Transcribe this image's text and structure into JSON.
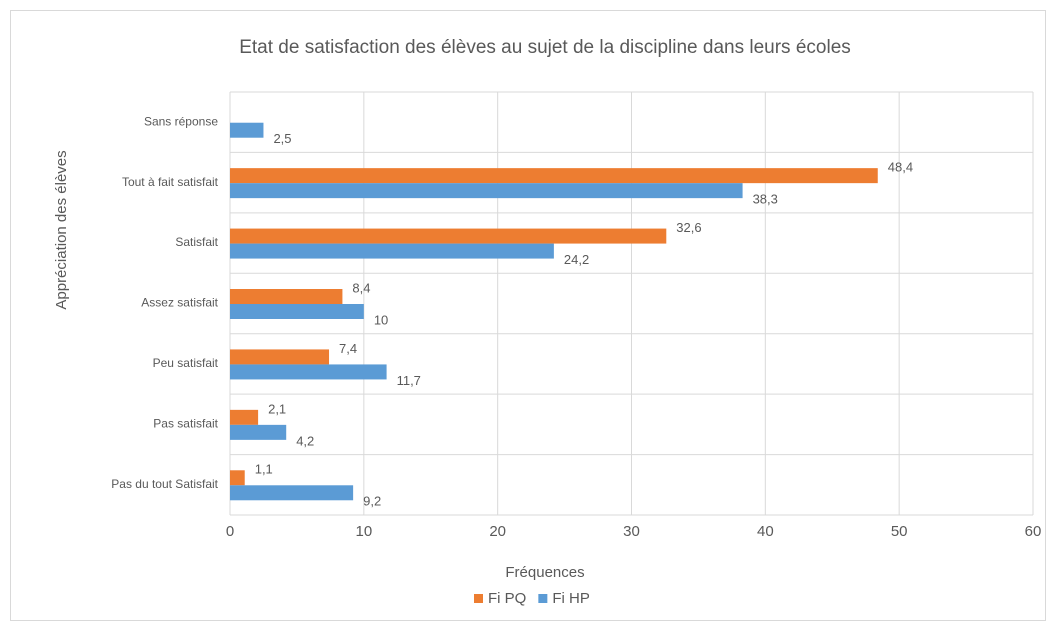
{
  "chart_data": {
    "type": "bar",
    "orientation": "horizontal",
    "title": "Etat de satisfaction des élèves au sujet de la discipline dans leurs écoles",
    "x_label": "Fréquences",
    "y_label": "Appréciation des élèves",
    "categories": [
      "Sans réponse",
      "Tout à fait  satisfait",
      "Satisfait",
      "Assez satisfait",
      "Peu satisfait",
      "Pas satisfait",
      "Pas du tout Satisfait"
    ],
    "series": [
      {
        "name": "Fi PQ",
        "color": "#ed7d31",
        "values": [
          null,
          48.4,
          32.6,
          8.4,
          7.4,
          2.1,
          1.1
        ],
        "value_labels": [
          null,
          "48,4",
          "32,6",
          "8,4",
          "7,4",
          "2,1",
          "1,1"
        ]
      },
      {
        "name": "Fi HP",
        "color": "#5b9bd5",
        "values": [
          2.5,
          38.3,
          24.2,
          10,
          11.7,
          4.2,
          9.2
        ],
        "value_labels": [
          "2,5",
          "38,3",
          "24,2",
          "10",
          "11,7",
          "4,2",
          "9,2"
        ]
      }
    ],
    "xlim": [
      0,
      60
    ],
    "xticks": [
      0,
      10,
      20,
      30,
      40,
      50,
      60
    ],
    "grid": true,
    "legend": "bottom"
  }
}
